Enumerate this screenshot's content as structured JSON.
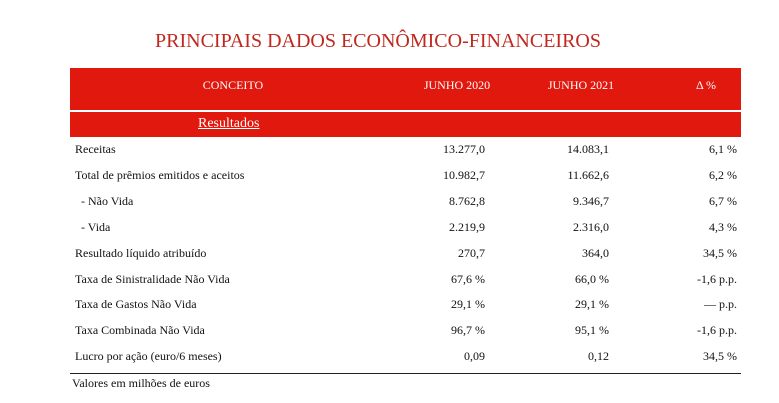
{
  "title": "PRINCIPAIS DADOS ECONÔMICO-FINANCEIROS",
  "table": {
    "header": [
      "CONCEITO",
      "JUNHO 2020",
      "JUNHO 2021",
      "Δ %"
    ],
    "section": "Resultados",
    "rows": [
      [
        "Receitas",
        "13.277,0",
        "14.083,1",
        "6,1 %"
      ],
      [
        "Total de prêmios emitidos e aceitos",
        "10.982,7",
        "11.662,6",
        "6,2 %"
      ],
      [
        "  - Não Vida",
        "8.762,8",
        "9.346,7",
        "6,7 %"
      ],
      [
        "  - Vida",
        "2.219,9",
        "2.316,0",
        "4,3 %"
      ],
      [
        "Resultado líquido atribuído",
        "270,7",
        "364,0",
        "34,5 %"
      ],
      [
        "Taxa de Sinistralidade Não Vida",
        "67,6 %",
        "66,0 %",
        "-1,6 p.p."
      ],
      [
        "Taxa de Gastos Não Vida",
        "29,1 %",
        "29,1 %",
        "— p.p."
      ],
      [
        "Taxa Combinada Não Vida",
        "96,7 %",
        "95,1 %",
        "-1,6 p.p."
      ],
      [
        "Lucro por ação (euro/6 meses)",
        "0,09",
        "0,12",
        "34,5 %"
      ]
    ]
  },
  "footnote": "Valores em milhões de euros"
}
